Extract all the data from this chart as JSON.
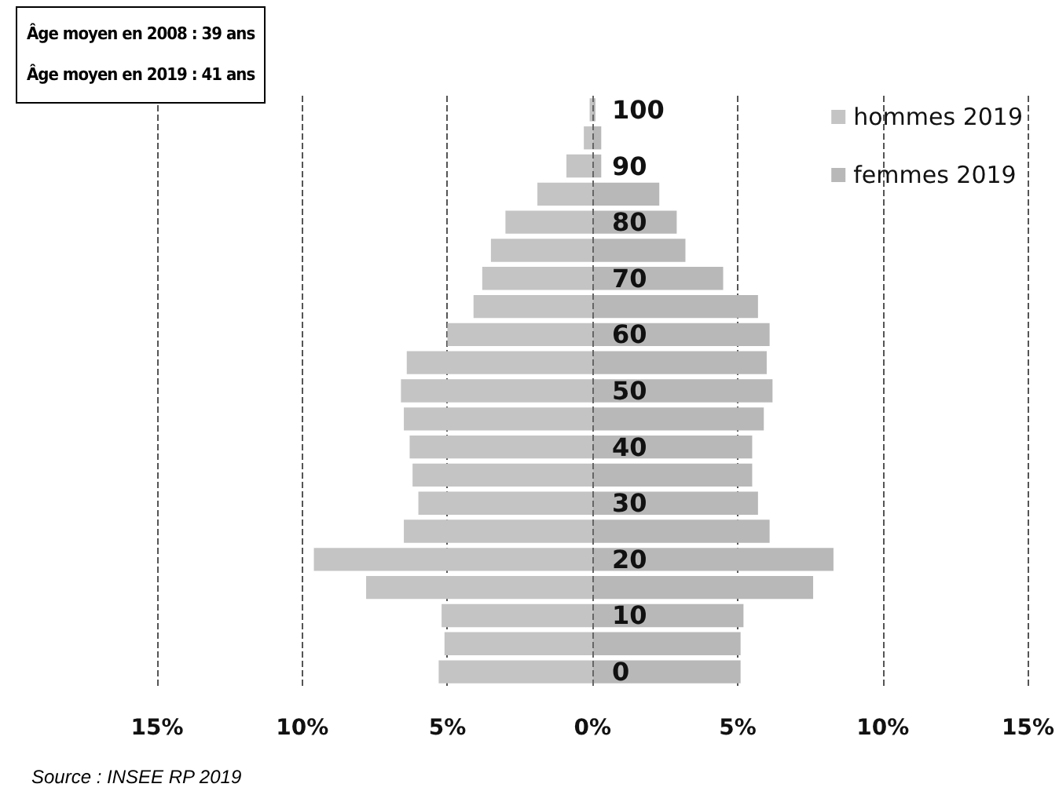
{
  "chart_data": {
    "type": "bar",
    "orientation": "horizontal",
    "categories": [
      "100",
      null,
      "90",
      null,
      "80",
      null,
      "70",
      null,
      "60",
      null,
      "50",
      null,
      "40",
      null,
      "30",
      null,
      "20",
      null,
      "10",
      null,
      "0"
    ],
    "series": [
      {
        "name": "hommes 2019",
        "color": "#c4c4c4",
        "values": [
          -0.1,
          -0.3,
          -0.9,
          -1.9,
          -3.0,
          -3.5,
          -3.8,
          -4.1,
          -5.0,
          -6.4,
          -6.6,
          -6.5,
          -6.3,
          -6.2,
          -6.0,
          -6.5,
          -9.6,
          -7.8,
          -5.2,
          -5.1,
          -5.3
        ]
      },
      {
        "name": "femmes 2019",
        "color": "#b8b8b8",
        "values": [
          0.1,
          0.3,
          0.3,
          2.3,
          2.9,
          3.2,
          4.5,
          5.7,
          6.1,
          6.0,
          6.2,
          5.9,
          5.5,
          5.5,
          5.7,
          6.1,
          8.3,
          7.6,
          5.2,
          5.1,
          5.1
        ]
      }
    ],
    "xlim": [
      -15,
      15
    ],
    "xticks": [
      {
        "value": -15,
        "label": "15%"
      },
      {
        "value": -10,
        "label": "10%"
      },
      {
        "value": -5,
        "label": "5%"
      },
      {
        "value": 0,
        "label": "0%"
      },
      {
        "value": 5,
        "label": "5%"
      },
      {
        "value": 10,
        "label": "10%"
      },
      {
        "value": 15,
        "label": "15%"
      }
    ],
    "stacked": true,
    "ref_lines": [
      {
        "axis": "x",
        "value": 0,
        "color": "#666666",
        "line_style": "dashed"
      }
    ],
    "grid": "x",
    "legend": "top right",
    "annotations": [
      "Âge moyen en 2008 : 39 ans",
      "Âge moyen en 2019 : 41 ans",
      "Source : INSEE RP 2019"
    ]
  }
}
